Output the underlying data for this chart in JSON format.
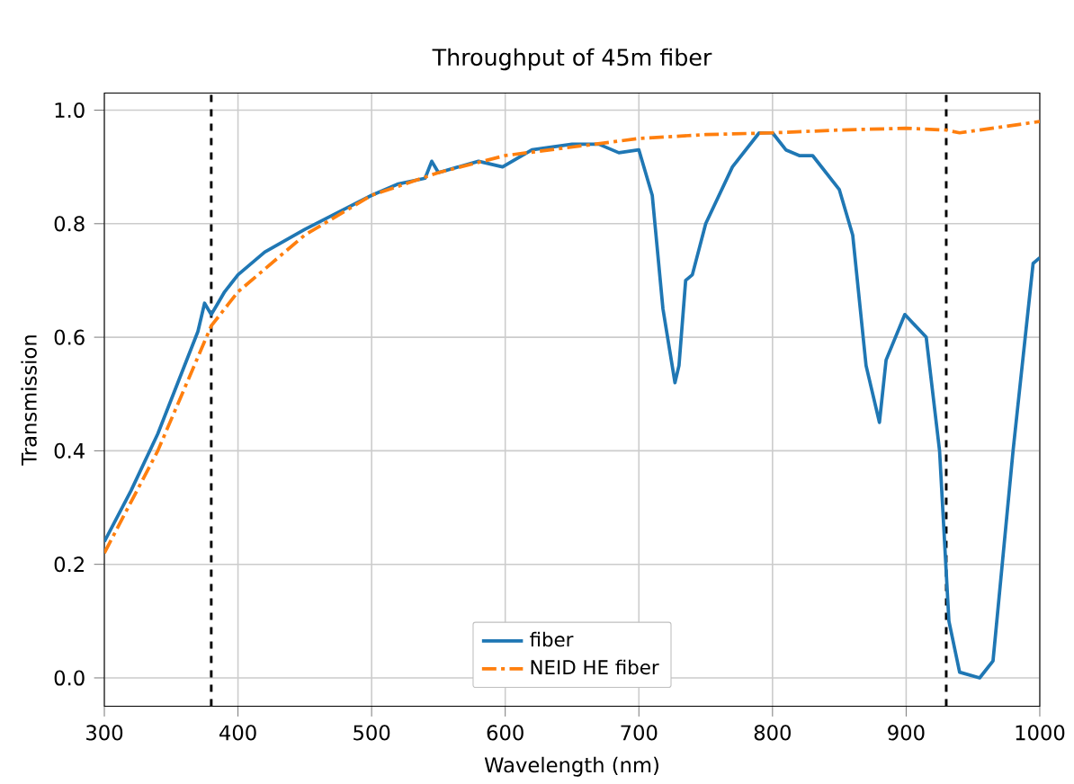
{
  "chart_data": {
    "type": "line",
    "title": "Throughput of 45m fiber",
    "xlabel": "Wavelength (nm)",
    "ylabel": "Transmission",
    "xlim": [
      300,
      1000
    ],
    "ylim": [
      -0.05,
      1.03
    ],
    "xticks": [
      300,
      400,
      500,
      600,
      700,
      800,
      900,
      1000
    ],
    "yticks": [
      {
        "value": 0,
        "label": "0.0"
      },
      {
        "value": 0.2,
        "label": "0.2"
      },
      {
        "value": 0.4,
        "label": "0.4"
      },
      {
        "value": 0.6,
        "label": "0.6"
      },
      {
        "value": 0.8,
        "label": "0.8"
      },
      {
        "value": 1.0,
        "label": "1.0"
      }
    ],
    "grid": true,
    "legend": "bottom",
    "series": [
      {
        "name": "fiber",
        "color": "#1f77b4",
        "line_style": "solid",
        "x": [
          300,
          320,
          340,
          350,
          360,
          370,
          375,
          380,
          385,
          390,
          400,
          420,
          450,
          475,
          500,
          520,
          540,
          545,
          550,
          580,
          598,
          620,
          650,
          670,
          685,
          700,
          710,
          718,
          727,
          730,
          735,
          740,
          750,
          770,
          790,
          800,
          810,
          820,
          830,
          850,
          860,
          870,
          880,
          885,
          899,
          915,
          925,
          932,
          940,
          955,
          965,
          980,
          995,
          1000
        ],
        "values": [
          0.24,
          0.33,
          0.43,
          0.49,
          0.55,
          0.61,
          0.66,
          0.64,
          0.66,
          0.68,
          0.71,
          0.75,
          0.79,
          0.82,
          0.85,
          0.87,
          0.88,
          0.91,
          0.89,
          0.91,
          0.9,
          0.93,
          0.94,
          0.94,
          0.925,
          0.93,
          0.85,
          0.65,
          0.52,
          0.55,
          0.7,
          0.71,
          0.8,
          0.9,
          0.96,
          0.96,
          0.93,
          0.92,
          0.92,
          0.86,
          0.78,
          0.55,
          0.45,
          0.56,
          0.64,
          0.6,
          0.4,
          0.1,
          0.01,
          0.0,
          0.03,
          0.4,
          0.73,
          0.74
        ]
      },
      {
        "name": "NEID HE fiber",
        "color": "#ff7f0e",
        "line_style": "dashdot",
        "x": [
          300,
          340,
          380,
          400,
          450,
          500,
          550,
          600,
          650,
          700,
          750,
          800,
          850,
          900,
          930,
          940,
          1000
        ],
        "values": [
          0.22,
          0.4,
          0.62,
          0.68,
          0.78,
          0.85,
          0.89,
          0.92,
          0.935,
          0.95,
          0.957,
          0.96,
          0.965,
          0.968,
          0.965,
          0.96,
          0.98
        ]
      }
    ],
    "ref_lines": [
      {
        "axis": "x",
        "value": 380,
        "color": "#000000",
        "line_style": "dashed"
      },
      {
        "axis": "x",
        "value": 930,
        "color": "#000000",
        "line_style": "dashed"
      }
    ]
  }
}
